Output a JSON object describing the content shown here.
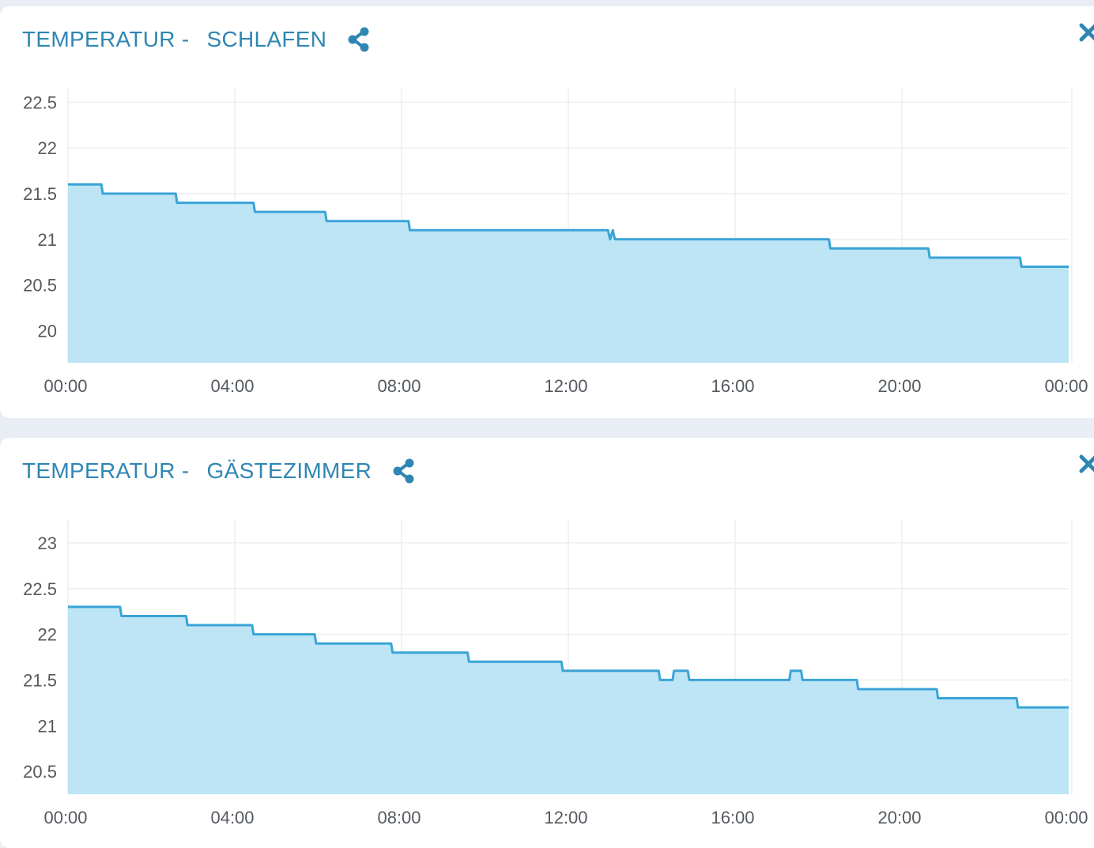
{
  "colors": {
    "accent": "#2f86b3",
    "line": "#3aa4d6",
    "fill": "#bde5f6",
    "grid": "#eeeeee",
    "page_background": "#e9eef4"
  },
  "icons": {
    "share": "share-icon",
    "close": "close-icon"
  },
  "panels": [
    {
      "title_prefix": "TEMPERATUR -",
      "title_room": "SCHLAFEN"
    },
    {
      "title_prefix": "TEMPERATUR -",
      "title_room": "GÄSTEZIMMER"
    }
  ],
  "chart_data": [
    {
      "type": "area",
      "title": "TEMPERATUR - SCHLAFEN",
      "xlabel": "",
      "ylabel": "",
      "x_ticks": [
        "00:00",
        "04:00",
        "08:00",
        "12:00",
        "16:00",
        "20:00",
        "00:00"
      ],
      "y_ticks": [
        "20",
        "20.5",
        "21",
        "21.5",
        "22",
        "22.5"
      ],
      "xlim": [
        "00:00",
        "24:00"
      ],
      "ylim": [
        19.65,
        22.65
      ],
      "grid": true,
      "legend": "none",
      "step": true,
      "series": [
        {
          "x": [
            "00:00",
            "00:48",
            "00:50",
            "02:35",
            "02:37",
            "04:27",
            "04:29",
            "06:10",
            "06:12",
            "08:10",
            "08:12",
            "12:57",
            "13:00",
            "13:04",
            "13:07",
            "18:15",
            "18:17",
            "20:38",
            "20:40",
            "22:50",
            "22:52",
            "24:00"
          ],
          "values": [
            21.6,
            21.6,
            21.5,
            21.5,
            21.4,
            21.4,
            21.3,
            21.3,
            21.2,
            21.2,
            21.1,
            21.1,
            21.0,
            21.1,
            21.0,
            21.0,
            20.9,
            20.9,
            20.8,
            20.8,
            20.7,
            20.7
          ]
        }
      ]
    },
    {
      "type": "area",
      "title": "TEMPERATUR - GÄSTEZIMMER",
      "xlabel": "",
      "ylabel": "",
      "x_ticks": [
        "00:00",
        "04:00",
        "08:00",
        "12:00",
        "16:00",
        "20:00",
        "00:00"
      ],
      "y_ticks": [
        "20.5",
        "21",
        "21.5",
        "22",
        "22.5",
        "23"
      ],
      "xlim": [
        "00:00",
        "24:00"
      ],
      "ylim": [
        20.25,
        23.25
      ],
      "grid": true,
      "legend": "none",
      "step": true,
      "series": [
        {
          "x": [
            "00:00",
            "01:15",
            "01:17",
            "02:50",
            "02:52",
            "04:25",
            "04:27",
            "05:55",
            "05:57",
            "07:45",
            "07:47",
            "09:35",
            "09:37",
            "11:50",
            "11:52",
            "14:10",
            "14:12",
            "14:30",
            "14:32",
            "14:52",
            "14:54",
            "17:18",
            "17:20",
            "17:35",
            "17:37",
            "18:55",
            "18:57",
            "20:50",
            "20:52",
            "22:45",
            "22:47",
            "24:00"
          ],
          "values": [
            22.3,
            22.3,
            22.2,
            22.2,
            22.1,
            22.1,
            22.0,
            22.0,
            21.9,
            21.9,
            21.8,
            21.8,
            21.7,
            21.7,
            21.6,
            21.6,
            21.5,
            21.5,
            21.6,
            21.6,
            21.5,
            21.5,
            21.6,
            21.6,
            21.5,
            21.5,
            21.4,
            21.4,
            21.3,
            21.3,
            21.2,
            21.2
          ]
        }
      ]
    }
  ]
}
